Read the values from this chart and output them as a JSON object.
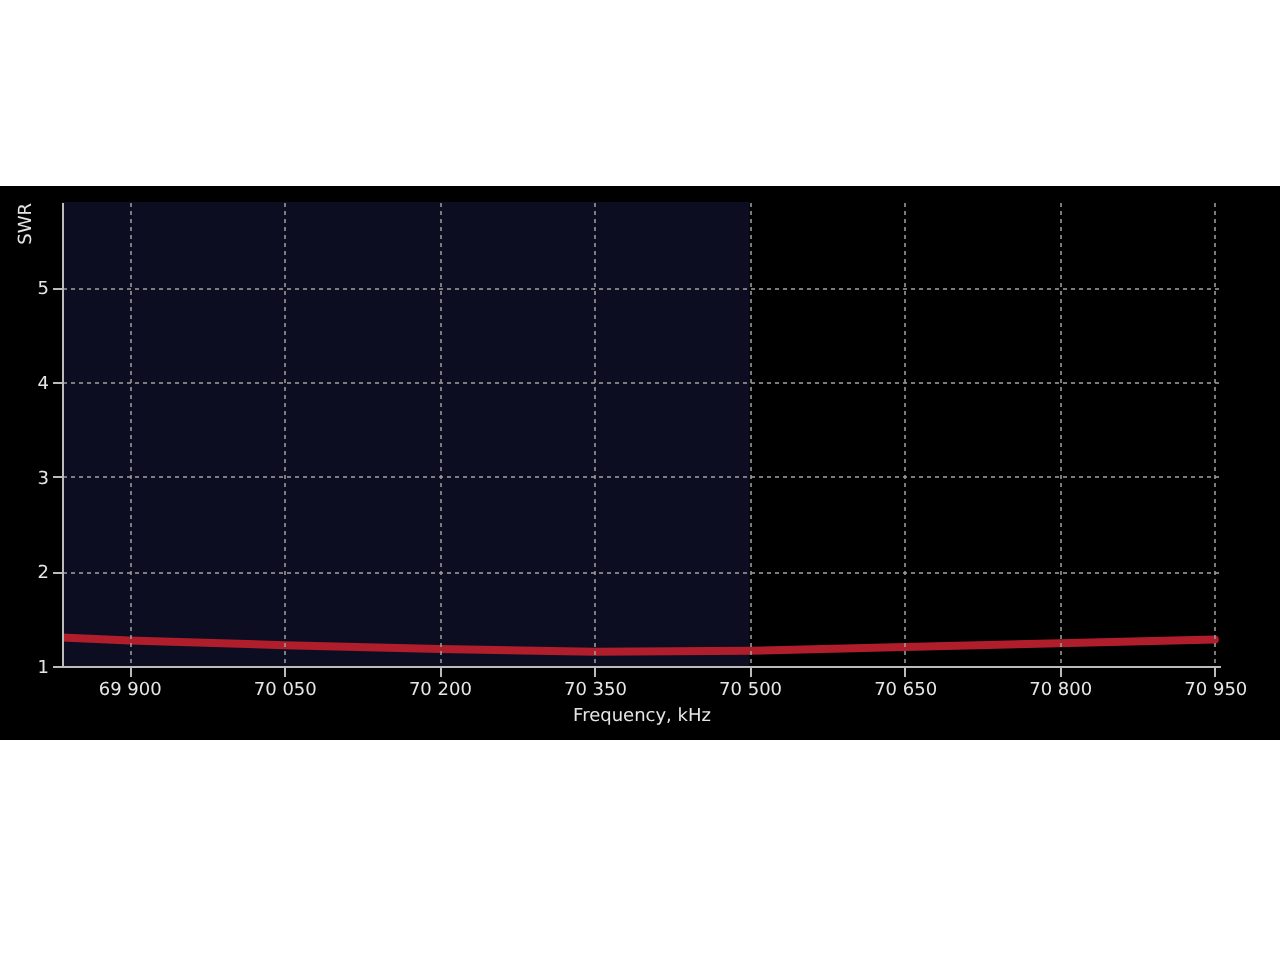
{
  "chart_data": {
    "type": "line",
    "xlabel": "Frequency, kHz",
    "ylabel": "SWR",
    "x": [
      69835,
      69900,
      70050,
      70200,
      70350,
      70500,
      70650,
      70800,
      70950
    ],
    "series": [
      {
        "color": "#b01e2c",
        "values": [
          1.3,
          1.27,
          1.22,
          1.18,
          1.15,
          1.16,
          1.2,
          1.24,
          1.28
        ]
      }
    ],
    "xlim": [
      69835,
      70955
    ],
    "ylim": [
      1,
      5.9
    ],
    "xticks": [
      {
        "value": 69900,
        "label": "69 900"
      },
      {
        "value": 70050,
        "label": "70 050"
      },
      {
        "value": 70200,
        "label": "70 200"
      },
      {
        "value": 70350,
        "label": "70 350"
      },
      {
        "value": 70500,
        "label": "70 500"
      },
      {
        "value": 70650,
        "label": "70 650"
      },
      {
        "value": 70800,
        "label": "70 800"
      },
      {
        "value": 70950,
        "label": "70 950"
      }
    ],
    "yticks": [
      1,
      2,
      3,
      4,
      5
    ],
    "bands": [
      {
        "axis": "x",
        "from": 69835,
        "to": 70500,
        "color": "#0d0d22"
      }
    ],
    "grid": true,
    "line_style": "solid",
    "marker": "none"
  }
}
